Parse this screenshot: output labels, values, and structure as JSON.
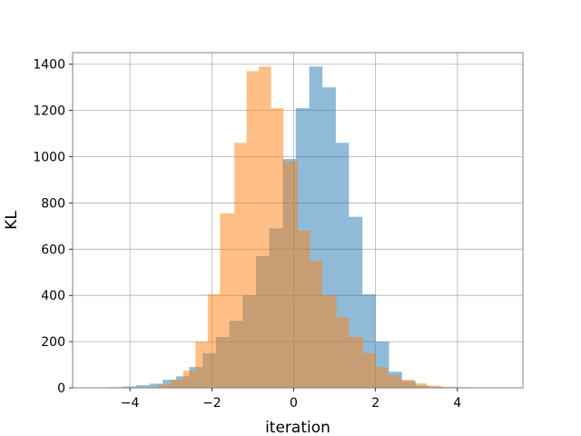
{
  "chart_data": {
    "type": "bar",
    "title": "",
    "xlabel": "iteration",
    "ylabel": "KL",
    "xlim": [
      -5.4,
      5.6
    ],
    "ylim": [
      0,
      1450
    ],
    "xticks": [
      -4,
      -2,
      0,
      2,
      4
    ],
    "yticks": [
      0,
      200,
      400,
      600,
      800,
      1000,
      1200,
      1400
    ],
    "xtick_labels": [
      "−4",
      "−2",
      "0",
      "2",
      "4"
    ],
    "ytick_labels": [
      "0",
      "200",
      "400",
      "600",
      "800",
      "1000",
      "1200",
      "1400"
    ],
    "grid": true,
    "legend": "none",
    "series": [
      {
        "color": "#1f77b4",
        "opacity": 0.5,
        "bins": [
          [
            -4.5,
            -4.17,
            3
          ],
          [
            -4.17,
            -3.85,
            6
          ],
          [
            -3.85,
            -3.52,
            12
          ],
          [
            -3.52,
            -3.2,
            18
          ],
          [
            -3.2,
            -2.87,
            35
          ],
          [
            -2.87,
            -2.55,
            50
          ],
          [
            -2.55,
            -2.22,
            90
          ],
          [
            -2.22,
            -1.9,
            150
          ],
          [
            -1.9,
            -1.57,
            220
          ],
          [
            -1.57,
            -1.25,
            290
          ],
          [
            -1.25,
            -0.92,
            400
          ],
          [
            -0.92,
            -0.6,
            570
          ],
          [
            -0.6,
            -0.27,
            690
          ],
          [
            -0.27,
            0.05,
            990
          ],
          [
            0.05,
            0.38,
            1210
          ],
          [
            0.38,
            0.7,
            1390
          ],
          [
            0.7,
            1.03,
            1300
          ],
          [
            1.03,
            1.35,
            1060
          ],
          [
            1.35,
            1.68,
            740
          ],
          [
            1.68,
            2.0,
            405
          ],
          [
            2.0,
            2.33,
            200
          ],
          [
            2.33,
            2.65,
            70
          ],
          [
            2.65,
            2.98,
            30
          ],
          [
            2.98,
            3.3,
            10
          ],
          [
            3.3,
            3.63,
            4
          ]
        ]
      },
      {
        "color": "#ff7f0e",
        "opacity": 0.5,
        "bins": [
          [
            -3.3,
            -3.0,
            15
          ],
          [
            -3.0,
            -2.7,
            35
          ],
          [
            -2.7,
            -2.4,
            75
          ],
          [
            -2.4,
            -2.1,
            200
          ],
          [
            -2.1,
            -1.8,
            405
          ],
          [
            -1.8,
            -1.45,
            755
          ],
          [
            -1.45,
            -1.15,
            1060
          ],
          [
            -1.15,
            -0.85,
            1370
          ],
          [
            -0.85,
            -0.55,
            1390
          ],
          [
            -0.55,
            -0.25,
            1210
          ],
          [
            -0.25,
            0.1,
            980
          ],
          [
            0.1,
            0.4,
            680
          ],
          [
            0.4,
            0.7,
            550
          ],
          [
            0.7,
            1.05,
            400
          ],
          [
            1.05,
            1.35,
            305
          ],
          [
            1.35,
            1.7,
            220
          ],
          [
            1.7,
            2.0,
            150
          ],
          [
            2.0,
            2.3,
            90
          ],
          [
            2.3,
            2.6,
            55
          ],
          [
            2.6,
            2.95,
            35
          ],
          [
            2.95,
            3.25,
            20
          ],
          [
            3.25,
            3.6,
            10
          ],
          [
            3.6,
            3.95,
            5
          ],
          [
            3.95,
            4.3,
            3
          ]
        ]
      }
    ]
  }
}
